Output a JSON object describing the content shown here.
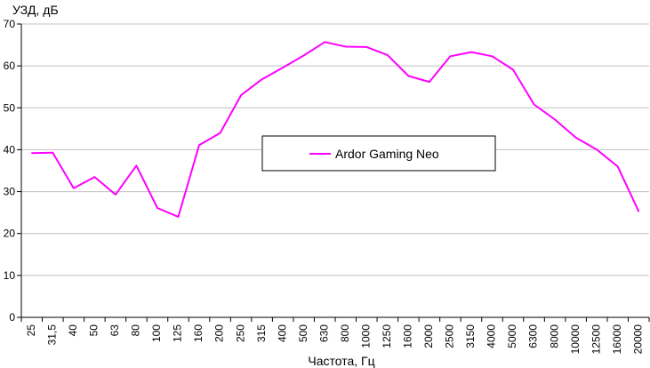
{
  "chart_data": {
    "type": "line",
    "ylabel": "УЗД, дБ",
    "xlabel": "Частота, Гц",
    "ylim": [
      0,
      70
    ],
    "yticks": [
      0,
      10,
      20,
      30,
      40,
      50,
      60,
      70
    ],
    "grid": true,
    "legend_position": "center",
    "categories": [
      "25",
      "31,5",
      "40",
      "50",
      "63",
      "80",
      "100",
      "125",
      "160",
      "200",
      "250",
      "315",
      "400",
      "500",
      "630",
      "800",
      "1000",
      "1250",
      "1600",
      "2000",
      "2500",
      "3150",
      "4000",
      "5000",
      "6300",
      "8000",
      "10000",
      "12500",
      "16000",
      "20000"
    ],
    "series": [
      {
        "name": "Ardor Gaming Neo",
        "color": "#ff00ff",
        "values": [
          39.2,
          39.3,
          30.8,
          33.5,
          29.3,
          36.2,
          26.1,
          24.0,
          41.1,
          44.0,
          53.0,
          56.8,
          59.6,
          62.5,
          65.7,
          64.6,
          64.5,
          62.6,
          57.6,
          56.2,
          62.3,
          63.3,
          62.3,
          59.1,
          50.8,
          47.2,
          42.9,
          40.0,
          36.0,
          25.3
        ]
      }
    ]
  }
}
